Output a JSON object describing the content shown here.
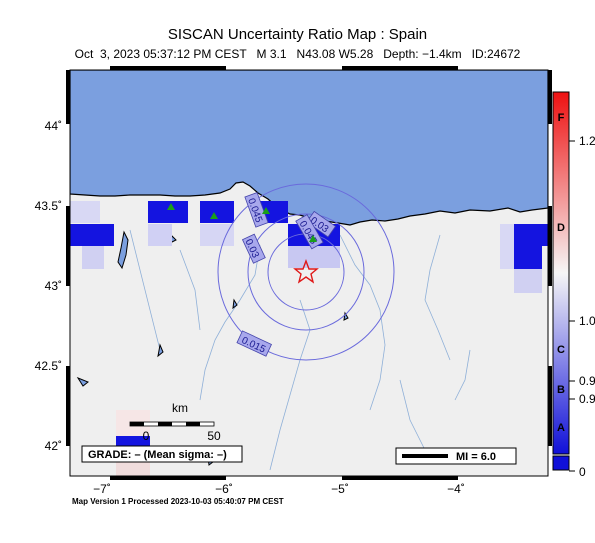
{
  "header": {
    "title": "SISCAN Uncertainty Ratio Map : Spain",
    "subtitle": "Oct  3, 2023 05:37:12 PM CEST   M 3.1   N43.08 W5.28   Depth: −1.4km   ID:24672"
  },
  "map": {
    "lon_ticks": [
      "−7˚",
      "−6˚",
      "−5˚",
      "−4˚"
    ],
    "lat_ticks": [
      "44˚",
      "43.5˚",
      "43˚",
      "42.5˚",
      "42˚"
    ],
    "contour_labels": [
      "0.045",
      "0.03",
      "0.03",
      "0.045",
      "0.015"
    ],
    "scalebar": {
      "unit": "km",
      "zero": "0",
      "fifty": "50"
    },
    "grade_label": "GRADE: – (Mean sigma: –)",
    "mi_label": "MI = 6.0",
    "colors": {
      "ocean": "#7b9fdf",
      "land": "#efefef",
      "epicenter": "#e01818",
      "station": "#1a9e1a"
    }
  },
  "colorbar": {
    "letters": [
      "F",
      "D",
      "C",
      "B",
      "A"
    ],
    "values": [
      "1.2",
      "1.0",
      "0.9",
      "0.9",
      "0"
    ],
    "colors": {
      "top": "#ee1111",
      "mid": "#f4f4f4",
      "bottom": "#1010d8"
    }
  },
  "footer": {
    "text": "Map Version 1 Processed 2023-10-03 05:40:07 PM CEST"
  }
}
